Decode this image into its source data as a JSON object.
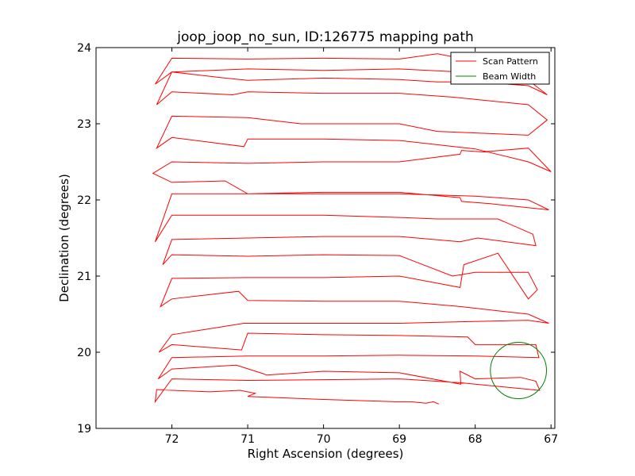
{
  "chart_data": {
    "type": "line",
    "title": "joop_joop_no_sun, ID:126775 mapping path",
    "xlabel": "Right Ascension (degrees)",
    "ylabel": "Declination (degrees)",
    "xlim": [
      73.0,
      66.95
    ],
    "ylim": [
      19.0,
      24.0
    ],
    "xticks": [
      72,
      71,
      70,
      69,
      68,
      67
    ],
    "yticks": [
      19,
      20,
      21,
      22,
      23,
      24
    ],
    "grid": false,
    "legend_position": "top-right",
    "series": [
      {
        "name": "Scan Pattern",
        "color": "#ff0000",
        "points": [
          [
            68.48,
            19.32
          ],
          [
            68.55,
            19.35
          ],
          [
            68.65,
            19.33
          ],
          [
            68.85,
            19.35
          ],
          [
            69.05,
            19.35
          ],
          [
            70.0,
            19.38
          ],
          [
            71.0,
            19.42
          ],
          [
            70.9,
            19.46
          ],
          [
            71.1,
            19.5
          ],
          [
            71.5,
            19.48
          ],
          [
            72.0,
            19.5
          ],
          [
            72.2,
            19.51
          ],
          [
            72.22,
            19.35
          ],
          [
            72.0,
            19.65
          ],
          [
            71.0,
            19.63
          ],
          [
            70.0,
            19.64
          ],
          [
            69.0,
            19.65
          ],
          [
            68.2,
            19.6
          ],
          [
            67.16,
            19.5
          ],
          [
            67.15,
            19.5
          ],
          [
            67.2,
            19.62
          ],
          [
            67.4,
            19.67
          ],
          [
            68.0,
            19.65
          ],
          [
            68.2,
            19.75
          ],
          [
            68.19,
            19.58
          ],
          [
            69.0,
            19.73
          ],
          [
            70.0,
            19.75
          ],
          [
            70.75,
            19.7
          ],
          [
            70.8,
            19.72
          ],
          [
            71.15,
            19.83
          ],
          [
            72.0,
            19.78
          ],
          [
            72.18,
            19.65
          ],
          [
            72.0,
            19.93
          ],
          [
            71.0,
            19.95
          ],
          [
            70.0,
            19.95
          ],
          [
            69.0,
            19.96
          ],
          [
            68.0,
            19.95
          ],
          [
            67.16,
            19.93
          ],
          [
            67.2,
            20.1
          ],
          [
            68.0,
            20.1
          ],
          [
            68.1,
            20.2
          ],
          [
            69.0,
            20.22
          ],
          [
            70.0,
            20.23
          ],
          [
            71.0,
            20.25
          ],
          [
            71.08,
            20.03
          ],
          [
            72.0,
            20.1
          ],
          [
            72.17,
            20.0
          ],
          [
            72.0,
            20.23
          ],
          [
            71.05,
            20.38
          ],
          [
            70.0,
            20.38
          ],
          [
            69.0,
            20.38
          ],
          [
            68.2,
            20.4
          ],
          [
            67.3,
            20.42
          ],
          [
            67.03,
            20.38
          ],
          [
            67.3,
            20.5
          ],
          [
            68.2,
            20.6
          ],
          [
            69.0,
            20.67
          ],
          [
            70.0,
            20.67
          ],
          [
            71.0,
            20.68
          ],
          [
            71.12,
            20.8
          ],
          [
            72.0,
            20.7
          ],
          [
            72.15,
            20.6
          ],
          [
            72.0,
            20.97
          ],
          [
            71.0,
            20.98
          ],
          [
            70.0,
            20.98
          ],
          [
            69.0,
            21.0
          ],
          [
            68.2,
            20.85
          ],
          [
            68.15,
            21.15
          ],
          [
            67.7,
            21.3
          ],
          [
            67.3,
            20.7
          ],
          [
            67.18,
            20.82
          ],
          [
            67.3,
            21.05
          ],
          [
            68.0,
            21.05
          ],
          [
            68.3,
            21.0
          ],
          [
            69.0,
            21.27
          ],
          [
            70.0,
            21.28
          ],
          [
            71.0,
            21.26
          ],
          [
            72.0,
            21.28
          ],
          [
            72.12,
            21.15
          ],
          [
            72.0,
            21.48
          ],
          [
            71.0,
            21.5
          ],
          [
            70.0,
            21.52
          ],
          [
            69.0,
            21.52
          ],
          [
            68.2,
            21.45
          ],
          [
            67.97,
            21.5
          ],
          [
            67.2,
            21.4
          ],
          [
            67.24,
            21.55
          ],
          [
            67.7,
            21.75
          ],
          [
            68.5,
            21.75
          ],
          [
            69.0,
            21.77
          ],
          [
            70.0,
            21.8
          ],
          [
            71.0,
            21.8
          ],
          [
            72.0,
            21.8
          ],
          [
            72.22,
            21.45
          ],
          [
            72.0,
            22.08
          ],
          [
            71.0,
            22.08
          ],
          [
            70.0,
            22.1
          ],
          [
            69.0,
            22.1
          ],
          [
            68.2,
            22.03
          ],
          [
            68.18,
            21.98
          ],
          [
            67.8,
            21.95
          ],
          [
            67.03,
            21.87
          ],
          [
            67.3,
            22.0
          ],
          [
            68.0,
            22.05
          ],
          [
            69.0,
            22.08
          ],
          [
            70.0,
            22.08
          ],
          [
            71.0,
            22.08
          ],
          [
            71.3,
            22.25
          ],
          [
            72.0,
            22.23
          ],
          [
            72.25,
            22.35
          ],
          [
            72.0,
            22.5
          ],
          [
            71.0,
            22.48
          ],
          [
            70.0,
            22.5
          ],
          [
            69.0,
            22.5
          ],
          [
            68.2,
            22.6
          ],
          [
            68.18,
            22.65
          ],
          [
            67.9,
            22.63
          ],
          [
            67.3,
            22.68
          ],
          [
            67.0,
            22.37
          ],
          [
            67.3,
            22.5
          ],
          [
            68.0,
            22.67
          ],
          [
            69.0,
            22.78
          ],
          [
            70.0,
            22.8
          ],
          [
            71.0,
            22.8
          ],
          [
            71.05,
            22.7
          ],
          [
            72.0,
            22.82
          ],
          [
            72.2,
            22.68
          ],
          [
            72.0,
            23.1
          ],
          [
            71.0,
            23.08
          ],
          [
            70.3,
            23.0
          ],
          [
            70.0,
            23.0
          ],
          [
            69.0,
            23.0
          ],
          [
            68.5,
            22.9
          ],
          [
            67.3,
            22.85
          ],
          [
            67.05,
            23.05
          ],
          [
            67.3,
            23.25
          ],
          [
            68.3,
            23.35
          ],
          [
            69.0,
            23.4
          ],
          [
            70.0,
            23.4
          ],
          [
            71.0,
            23.42
          ],
          [
            71.2,
            23.38
          ],
          [
            72.0,
            23.42
          ],
          [
            72.2,
            23.25
          ],
          [
            72.0,
            23.68
          ],
          [
            71.0,
            23.72
          ],
          [
            70.0,
            23.7
          ],
          [
            69.0,
            23.72
          ],
          [
            68.2,
            23.68
          ],
          [
            67.4,
            23.65
          ],
          [
            67.05,
            23.38
          ],
          [
            67.3,
            23.5
          ],
          [
            68.0,
            23.55
          ],
          [
            68.5,
            23.55
          ],
          [
            69.0,
            23.58
          ],
          [
            70.0,
            23.6
          ],
          [
            71.0,
            23.57
          ],
          [
            71.3,
            23.6
          ],
          [
            72.0,
            23.68
          ],
          [
            72.22,
            23.52
          ],
          [
            72.0,
            23.86
          ],
          [
            71.0,
            23.85
          ],
          [
            70.0,
            23.86
          ],
          [
            69.0,
            23.85
          ],
          [
            68.5,
            23.92
          ],
          [
            68.2,
            23.86
          ]
        ]
      },
      {
        "name": "Beam Width",
        "color": "#008000",
        "shape": "circle",
        "center": [
          67.43,
          19.76
        ],
        "radius": 0.37
      }
    ]
  }
}
